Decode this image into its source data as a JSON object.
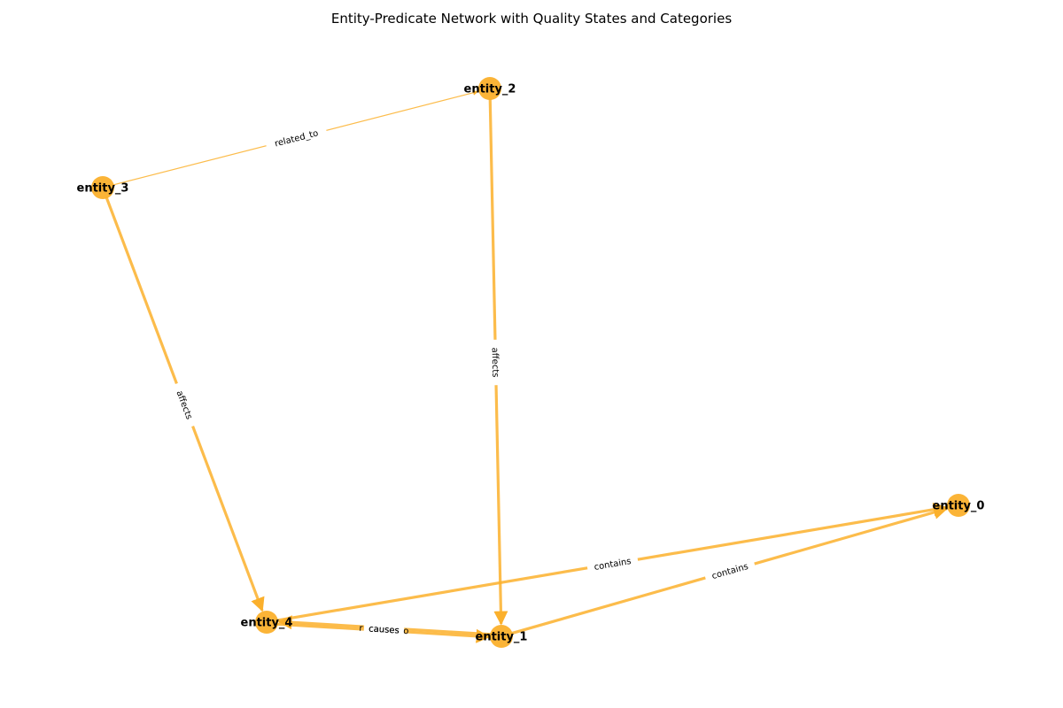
{
  "title": "Entity-Predicate Network with Quality States and Categories",
  "colors": {
    "node": "#fbb02c",
    "edge": "#fbb02c",
    "label_bg": "#ffffff"
  },
  "nodes": [
    {
      "id": "entity_0",
      "label": "entity_0"
    },
    {
      "id": "entity_1",
      "label": "entity_1"
    },
    {
      "id": "entity_2",
      "label": "entity_2"
    },
    {
      "id": "entity_3",
      "label": "entity_3"
    },
    {
      "id": "entity_4",
      "label": "entity_4"
    }
  ],
  "edges": [
    {
      "source": "entity_3",
      "target": "entity_2",
      "label": "related_to",
      "weight": "thin",
      "directed": true
    },
    {
      "source": "entity_2",
      "target": "entity_1",
      "label": "affects",
      "weight": "thick",
      "directed": true
    },
    {
      "source": "entity_3",
      "target": "entity_4",
      "label": "affects",
      "weight": "thick",
      "directed": true
    },
    {
      "source": "entity_4",
      "target": "entity_0",
      "label": "contains",
      "weight": "thick",
      "directed": true
    },
    {
      "source": "entity_1",
      "target": "entity_0",
      "label": "contains",
      "weight": "thick",
      "directed": true
    },
    {
      "source": "entity_4",
      "target": "entity_1",
      "label": "causes",
      "weight": "thick",
      "directed": true
    },
    {
      "source": "entity_1",
      "target": "entity_4",
      "label": "causes",
      "weight": "thick",
      "directed": true
    }
  ],
  "partial_labels": [
    "r",
    "o"
  ]
}
